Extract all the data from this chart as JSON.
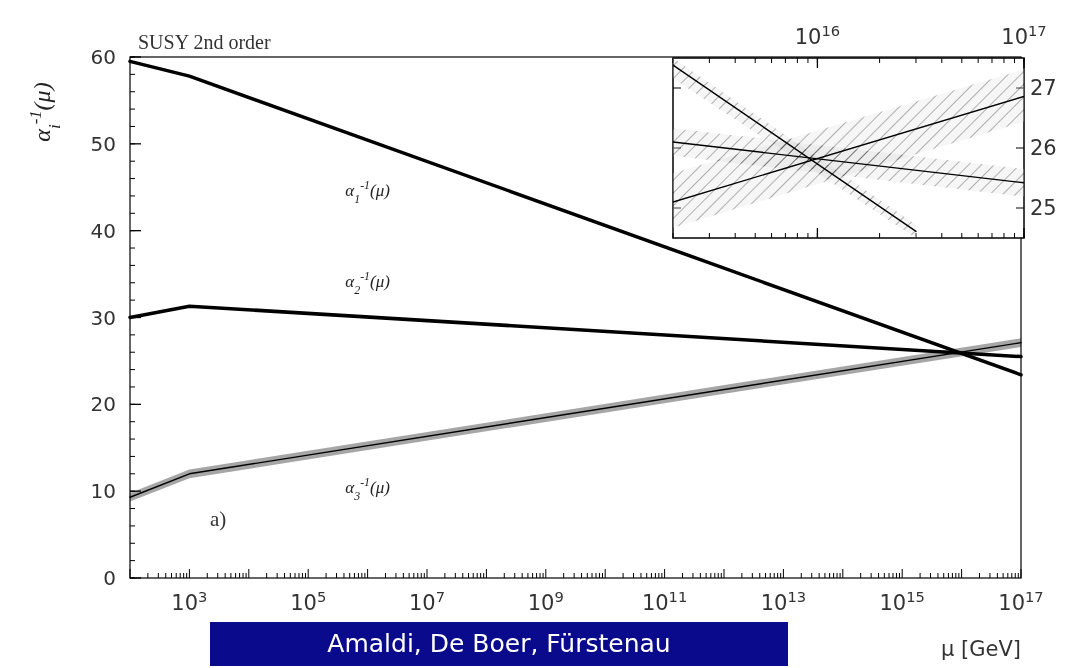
{
  "chart_data": [
    {
      "type": "line",
      "title": "SUSY 2nd order",
      "xlabel": "μ [GeV]",
      "ylabel": "α$_{i}$$^{-1}$(μ)",
      "log": "x",
      "x": [
        100,
        1000,
        1e+17
      ],
      "xlim": [
        100,
        1e+17
      ],
      "xticks": [
        {
          "value": 1000,
          "label": "10$^{3}$"
        },
        {
          "value": 100000.0,
          "label": "10$^{5}$"
        },
        {
          "value": 10000000.0,
          "label": "10$^{7}$"
        },
        {
          "value": 1000000000.0,
          "label": "10$^{9}$"
        },
        {
          "value": 100000000000.0,
          "label": "10$^{11}$"
        },
        {
          "value": 10000000000000.0,
          "label": "10$^{13}$"
        },
        {
          "value": 1000000000000000.0,
          "label": "10$^{15}$"
        },
        {
          "value": 1e+17,
          "label": "10$^{17}$"
        }
      ],
      "ylim": [
        0,
        60
      ],
      "yticks": [
        0,
        10,
        20,
        30,
        40,
        50,
        60
      ],
      "series": [
        {
          "name": "α$_{1}$$^{-1}$(μ)",
          "color": "#000000",
          "values": [
            59.5,
            57.8,
            23.4
          ]
        },
        {
          "name": "α$_{2}$$^{-1}$(μ)",
          "color": "#000000",
          "values": [
            30.0,
            31.3,
            25.5
          ]
        },
        {
          "name": "α$_{3}$$^{-1}$(μ)",
          "color": "#000000",
          "values": [
            9.3,
            12.0,
            27.1
          ],
          "lower": [
            8.8,
            11.5,
            26.6
          ],
          "upper": [
            9.8,
            12.5,
            27.6
          ]
        }
      ],
      "annotations": [
        "a)",
        "Amaldi, De Boer, Fürstenau"
      ]
    },
    {
      "type": "line",
      "log": "x",
      "xlim": [
        2000000000000000.0,
        1e+17
      ],
      "xticks": [
        {
          "value": 1e+16,
          "label": "10$^{16}$"
        },
        {
          "value": 1e+17,
          "label": "10$^{17}$"
        }
      ],
      "ylim": [
        24.5,
        27.5
      ],
      "yticks": [
        25,
        26,
        27
      ],
      "series": [
        {
          "color": "#000000",
          "x": [
            2000000000000000.0,
            3e+16
          ],
          "values": [
            27.38,
            24.61
          ],
          "lower": [
            27.16,
            24.5
          ],
          "upper": [
            27.5,
            24.72
          ]
        },
        {
          "color": "#000000",
          "x": [
            2000000000000000.0,
            1e+17
          ],
          "values": [
            26.1,
            25.42
          ],
          "lower": [
            25.87,
            25.19
          ],
          "upper": [
            26.33,
            25.65
          ]
        },
        {
          "color": "#000000",
          "x": [
            2000000000000000.0,
            1e+17
          ],
          "values": [
            25.1,
            26.86
          ],
          "lower": [
            24.67,
            26.44
          ],
          "upper": [
            25.58,
            27.31
          ]
        }
      ]
    }
  ]
}
